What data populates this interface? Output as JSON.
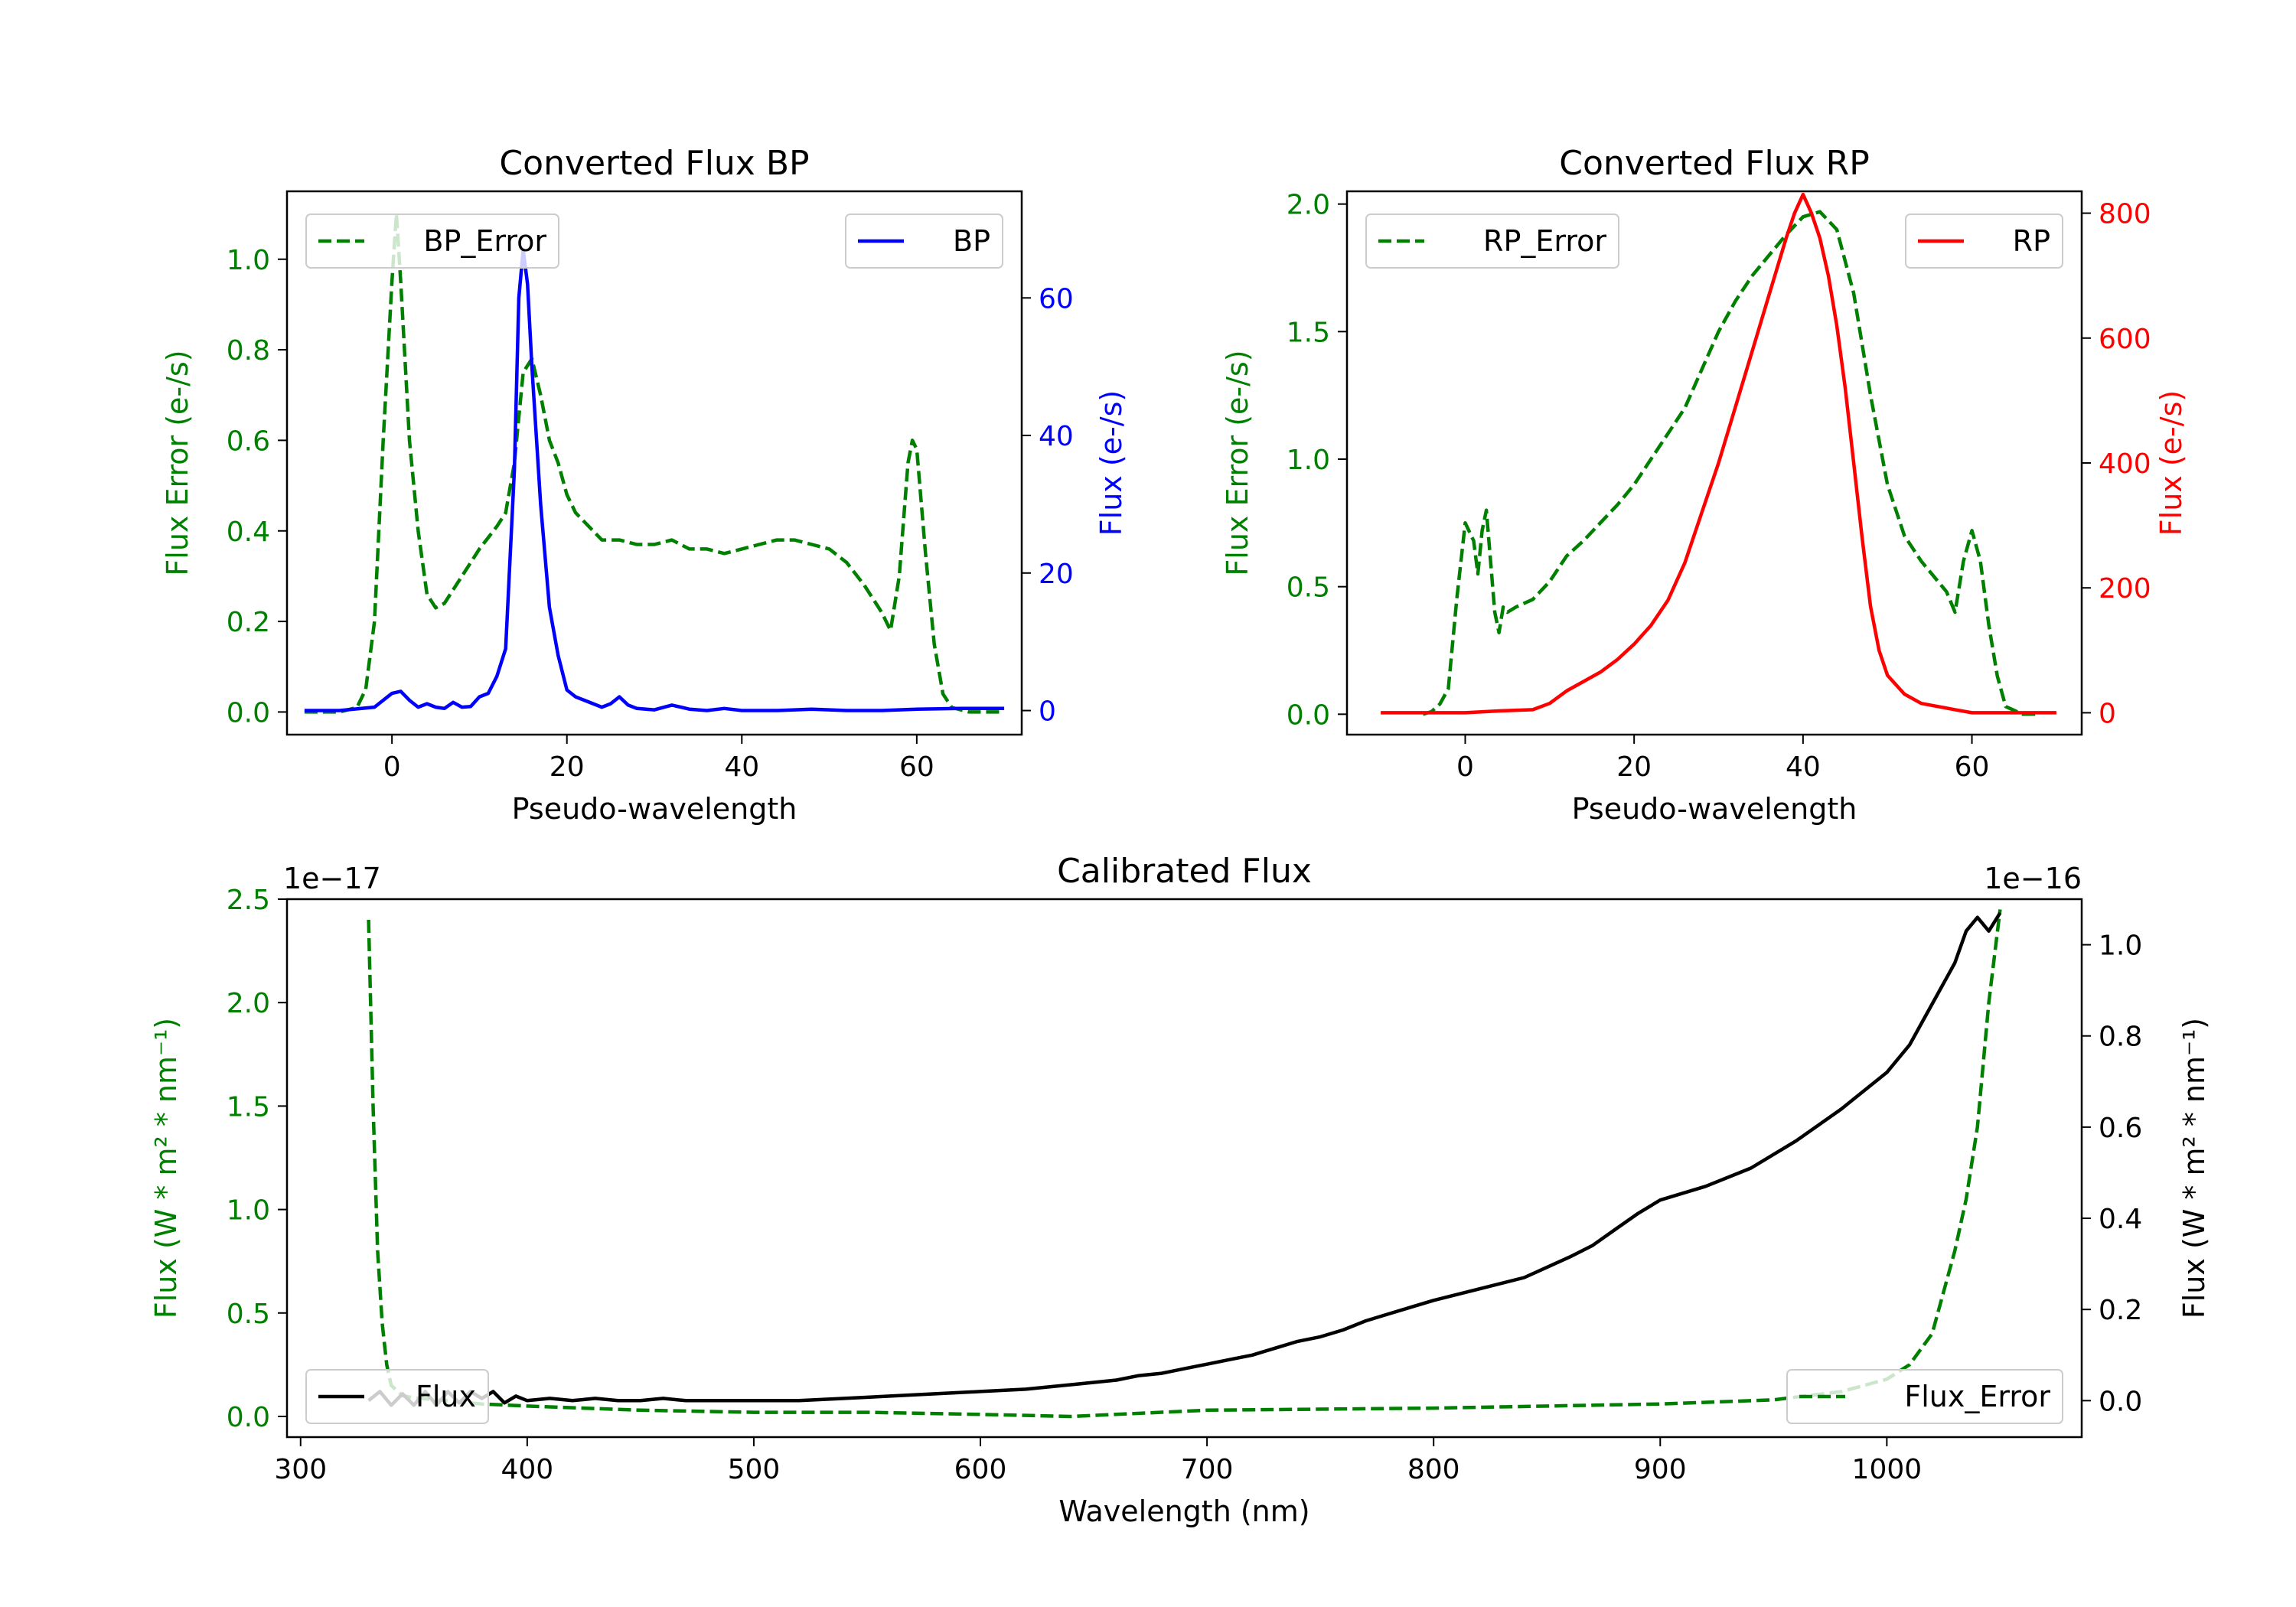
{
  "colors": {
    "error": "#008000",
    "bp": "#0000ff",
    "rp": "#ff0000",
    "flux": "#000000"
  },
  "chart_data": [
    {
      "type": "line",
      "title": "Converted Flux BP",
      "xlabel": "Pseudo-wavelength",
      "ylabel_left": "Flux Error (e-/s)",
      "ylabel_right": "Flux (e-/s)",
      "xlim": [
        -12,
        72
      ],
      "ylim_left": [
        -0.05,
        1.15
      ],
      "ylim_right": [
        -3.5,
        75.5
      ],
      "xticks": [
        0,
        20,
        40,
        60
      ],
      "yticks_left": [
        "0.0",
        "0.2",
        "0.4",
        "0.6",
        "0.8",
        "1.0"
      ],
      "yticks_right": [
        "0",
        "20",
        "40",
        "60"
      ],
      "legend_left": "top-left",
      "legend_right": "top-right",
      "series": [
        {
          "name": "BP_Error",
          "axis": "left",
          "style": "dashed",
          "color": "#008000",
          "x": [
            -10,
            -8,
            -6,
            -4,
            -3,
            -2,
            -1,
            0,
            0.5,
            1,
            2,
            3,
            4,
            5,
            6,
            7,
            8,
            9,
            10,
            12,
            13,
            14,
            15,
            16,
            17,
            18,
            19,
            20,
            21,
            22,
            24,
            26,
            28,
            30,
            32,
            34,
            36,
            38,
            40,
            42,
            44,
            46,
            48,
            50,
            52,
            54,
            55,
            56,
            57,
            58,
            59,
            59.5,
            60,
            61,
            62,
            63,
            64,
            66,
            68,
            70
          ],
          "y": [
            0.0,
            0.0,
            0.0,
            0.01,
            0.05,
            0.2,
            0.6,
            0.95,
            1.1,
            0.95,
            0.6,
            0.4,
            0.26,
            0.23,
            0.24,
            0.27,
            0.3,
            0.33,
            0.36,
            0.41,
            0.44,
            0.55,
            0.75,
            0.78,
            0.7,
            0.6,
            0.55,
            0.48,
            0.44,
            0.42,
            0.38,
            0.38,
            0.37,
            0.37,
            0.38,
            0.36,
            0.36,
            0.35,
            0.36,
            0.37,
            0.38,
            0.38,
            0.37,
            0.36,
            0.33,
            0.28,
            0.25,
            0.22,
            0.18,
            0.3,
            0.55,
            0.6,
            0.58,
            0.35,
            0.15,
            0.04,
            0.01,
            0.0,
            0.0,
            0.0
          ]
        },
        {
          "name": "BP",
          "axis": "right",
          "style": "solid",
          "color": "#0000ff",
          "x": [
            -10,
            -6,
            -2,
            0,
            1,
            2,
            3,
            4,
            5,
            6,
            7,
            8,
            9,
            10,
            11,
            12,
            13,
            14,
            14.5,
            15,
            15.5,
            16,
            17,
            18,
            19,
            20,
            21,
            22,
            23,
            24,
            25,
            26,
            27,
            28,
            30,
            32,
            34,
            36,
            38,
            40,
            44,
            48,
            52,
            56,
            60,
            65,
            70
          ],
          "y": [
            0,
            0,
            0.5,
            2.5,
            2.8,
            1.5,
            0.5,
            1,
            0.5,
            0.3,
            1.2,
            0.5,
            0.6,
            2,
            2.5,
            5,
            9,
            35,
            60,
            67,
            62,
            50,
            30,
            15,
            8,
            3,
            2,
            1.5,
            1,
            0.5,
            1,
            2,
            0.8,
            0.3,
            0.1,
            0.8,
            0.2,
            0,
            0.3,
            0,
            0,
            0.2,
            0,
            0,
            0.2,
            0.3,
            0.3
          ]
        }
      ]
    },
    {
      "type": "line",
      "title": "Converted Flux RP",
      "xlabel": "Pseudo-wavelength",
      "ylabel_left": "Flux Error (e-/s)",
      "ylabel_right": "Flux (e-/s)",
      "xlim": [
        -14,
        73
      ],
      "ylim_left": [
        -0.08,
        2.05
      ],
      "ylim_right": [
        -35,
        835
      ],
      "xticks": [
        0,
        20,
        40,
        60
      ],
      "yticks_left": [
        "0.0",
        "0.5",
        "1.0",
        "1.5",
        "2.0"
      ],
      "yticks_right": [
        "0",
        "200",
        "400",
        "600",
        "800"
      ],
      "legend_left": "top-left",
      "legend_right": "top-right",
      "series": [
        {
          "name": "RP_Error",
          "axis": "left",
          "style": "dashed",
          "color": "#008000",
          "x": [
            -5,
            -4,
            -3,
            -2,
            -1,
            0,
            1,
            1.5,
            2,
            2.5,
            3,
            3.5,
            4,
            4.5,
            5,
            6,
            8,
            10,
            12,
            14,
            16,
            18,
            20,
            22,
            24,
            26,
            28,
            30,
            32,
            34,
            36,
            38,
            40,
            42,
            44,
            46,
            48,
            50,
            52,
            54,
            55,
            56,
            57,
            58,
            59,
            60,
            61,
            62,
            63,
            64,
            66,
            68
          ],
          "y": [
            0.0,
            0.01,
            0.04,
            0.1,
            0.45,
            0.75,
            0.68,
            0.55,
            0.72,
            0.8,
            0.6,
            0.4,
            0.32,
            0.42,
            0.4,
            0.42,
            0.45,
            0.52,
            0.62,
            0.68,
            0.75,
            0.82,
            0.9,
            1.0,
            1.1,
            1.2,
            1.35,
            1.5,
            1.62,
            1.72,
            1.8,
            1.88,
            1.95,
            1.97,
            1.9,
            1.65,
            1.25,
            0.9,
            0.7,
            0.6,
            0.56,
            0.52,
            0.48,
            0.4,
            0.6,
            0.72,
            0.6,
            0.35,
            0.15,
            0.03,
            0.0,
            0.0
          ]
        },
        {
          "name": "RP",
          "axis": "right",
          "style": "solid",
          "color": "#ff0000",
          "x": [
            -10,
            -4,
            0,
            4,
            8,
            10,
            12,
            14,
            16,
            18,
            20,
            22,
            24,
            26,
            28,
            30,
            32,
            34,
            36,
            38,
            39,
            40,
            41,
            42,
            43,
            44,
            45,
            46,
            47,
            48,
            49,
            50,
            52,
            54,
            56,
            58,
            60,
            62,
            65,
            70
          ],
          "y": [
            0,
            0,
            0,
            3,
            5,
            15,
            35,
            50,
            65,
            85,
            110,
            140,
            180,
            240,
            320,
            400,
            490,
            580,
            670,
            760,
            800,
            830,
            800,
            760,
            700,
            620,
            520,
            400,
            280,
            170,
            100,
            60,
            30,
            15,
            10,
            5,
            0,
            0,
            0,
            0
          ]
        }
      ]
    },
    {
      "type": "line",
      "title": "Calibrated Flux",
      "xlabel": "Wavelength (nm)",
      "ylabel_left": "Flux (W * m² * nm⁻¹)",
      "ylabel_right": "Flux (W * m² * nm⁻¹)",
      "offset_left": "1e−17",
      "offset_right": "1e−16",
      "xlim": [
        294,
        1086
      ],
      "ylim_left": [
        -0.1,
        2.5
      ],
      "ylim_right": [
        -0.08,
        1.1
      ],
      "xticks": [
        300,
        400,
        500,
        600,
        700,
        800,
        900,
        1000
      ],
      "yticks_left": [
        "0.0",
        "0.5",
        "1.0",
        "1.5",
        "2.0",
        "2.5"
      ],
      "yticks_right": [
        "0.0",
        "0.2",
        "0.4",
        "0.6",
        "0.8",
        "1.0"
      ],
      "legend_left": "bottom-left",
      "legend_right": "bottom-right",
      "series": [
        {
          "name": "Flux",
          "axis": "right",
          "style": "solid",
          "color": "#000000",
          "x": [
            330,
            335,
            340,
            345,
            350,
            355,
            360,
            365,
            370,
            375,
            380,
            385,
            390,
            395,
            400,
            410,
            420,
            430,
            440,
            450,
            460,
            470,
            480,
            500,
            520,
            540,
            560,
            580,
            600,
            620,
            640,
            650,
            660,
            670,
            680,
            690,
            700,
            710,
            720,
            730,
            740,
            750,
            760,
            770,
            780,
            790,
            800,
            820,
            840,
            860,
            870,
            880,
            890,
            900,
            920,
            940,
            960,
            980,
            1000,
            1010,
            1020,
            1030,
            1035,
            1040,
            1045,
            1050
          ],
          "y": [
            0.0,
            0.02,
            -0.01,
            0.015,
            -0.01,
            0.02,
            -0.01,
            0.02,
            -0.005,
            0.02,
            0.005,
            0.02,
            -0.005,
            0.01,
            0.0,
            0.005,
            0.0,
            0.005,
            0.0,
            0.0,
            0.005,
            0.0,
            0.0,
            0.0,
            0.0,
            0.005,
            0.01,
            0.015,
            0.02,
            0.025,
            0.035,
            0.04,
            0.045,
            0.055,
            0.06,
            0.07,
            0.08,
            0.09,
            0.1,
            0.115,
            0.13,
            0.14,
            0.155,
            0.175,
            0.19,
            0.205,
            0.22,
            0.245,
            0.27,
            0.315,
            0.34,
            0.375,
            0.41,
            0.44,
            0.47,
            0.51,
            0.57,
            0.64,
            0.72,
            0.78,
            0.87,
            0.96,
            1.03,
            1.06,
            1.03,
            1.07
          ]
        },
        {
          "name": "Flux_Error",
          "axis": "left",
          "style": "dashed",
          "color": "#008000",
          "x": [
            330,
            332,
            334,
            336,
            338,
            340,
            345,
            350,
            360,
            370,
            380,
            400,
            450,
            500,
            550,
            600,
            640,
            700,
            800,
            900,
            950,
            980,
            1000,
            1010,
            1020,
            1025,
            1030,
            1035,
            1040,
            1045,
            1050
          ],
          "y": [
            2.4,
            1.5,
            0.8,
            0.45,
            0.25,
            0.15,
            0.1,
            0.09,
            0.08,
            0.07,
            0.06,
            0.05,
            0.03,
            0.02,
            0.02,
            0.01,
            0.0,
            0.03,
            0.04,
            0.06,
            0.08,
            0.12,
            0.18,
            0.25,
            0.4,
            0.6,
            0.8,
            1.05,
            1.4,
            2.0,
            2.45
          ]
        }
      ]
    }
  ]
}
